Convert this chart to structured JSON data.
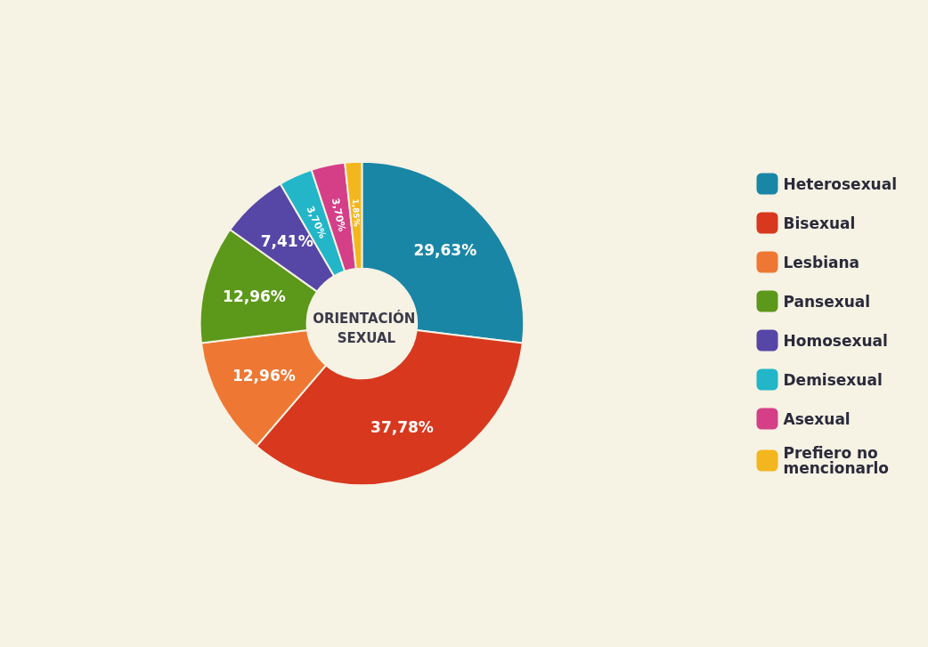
{
  "chart_data": {
    "type": "donut",
    "title": "ORIENTACIÓN SEXUAL",
    "categories": [
      "Heterosexual",
      "Bisexual",
      "Lesbiana",
      "Pansexual",
      "Homosexual",
      "Demisexual",
      "Asexual",
      "Prefiero no mencionarlo"
    ],
    "values": [
      29.63,
      37.78,
      12.96,
      12.96,
      7.41,
      3.7,
      3.7,
      1.85
    ],
    "value_labels": [
      "29,63%",
      "37,78%",
      "12,96%",
      "12,96%",
      "7,41%",
      "3,70%",
      "3,70%",
      "1,85%"
    ],
    "colors": [
      "#1a86a6",
      "#d8381e",
      "#ee7833",
      "#5c981a",
      "#5646a6",
      "#22b6c8",
      "#d43f88",
      "#f4b61e"
    ],
    "legend": "right"
  }
}
